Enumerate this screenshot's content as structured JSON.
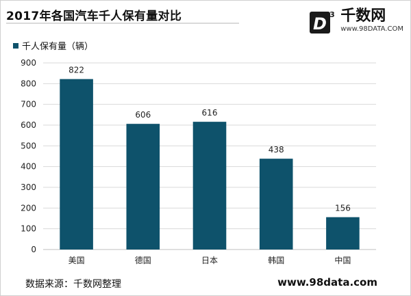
{
  "title": "2017年各国汽车千人保有量对比",
  "logo": {
    "mark": "D",
    "sup": "3",
    "name": "千数网",
    "url": "www.98DATA.COM"
  },
  "footer": {
    "source": "数据来源：千数网整理",
    "url": "www.98data.com"
  },
  "colors": {
    "bar": "#0e526b",
    "grid": "#d9d9d9"
  },
  "chart_data": {
    "type": "bar",
    "title": "2017年各国汽车千人保有量对比",
    "categories": [
      "美国",
      "德国",
      "日本",
      "韩国",
      "中国"
    ],
    "series": [
      {
        "name": "千人保有量（辆）",
        "values": [
          822,
          606,
          616,
          438,
          156
        ]
      }
    ],
    "ylim": [
      0,
      900
    ],
    "yticks": [
      0,
      100,
      200,
      300,
      400,
      500,
      600,
      700,
      800,
      900
    ],
    "grid": true,
    "legend": "top-left"
  }
}
